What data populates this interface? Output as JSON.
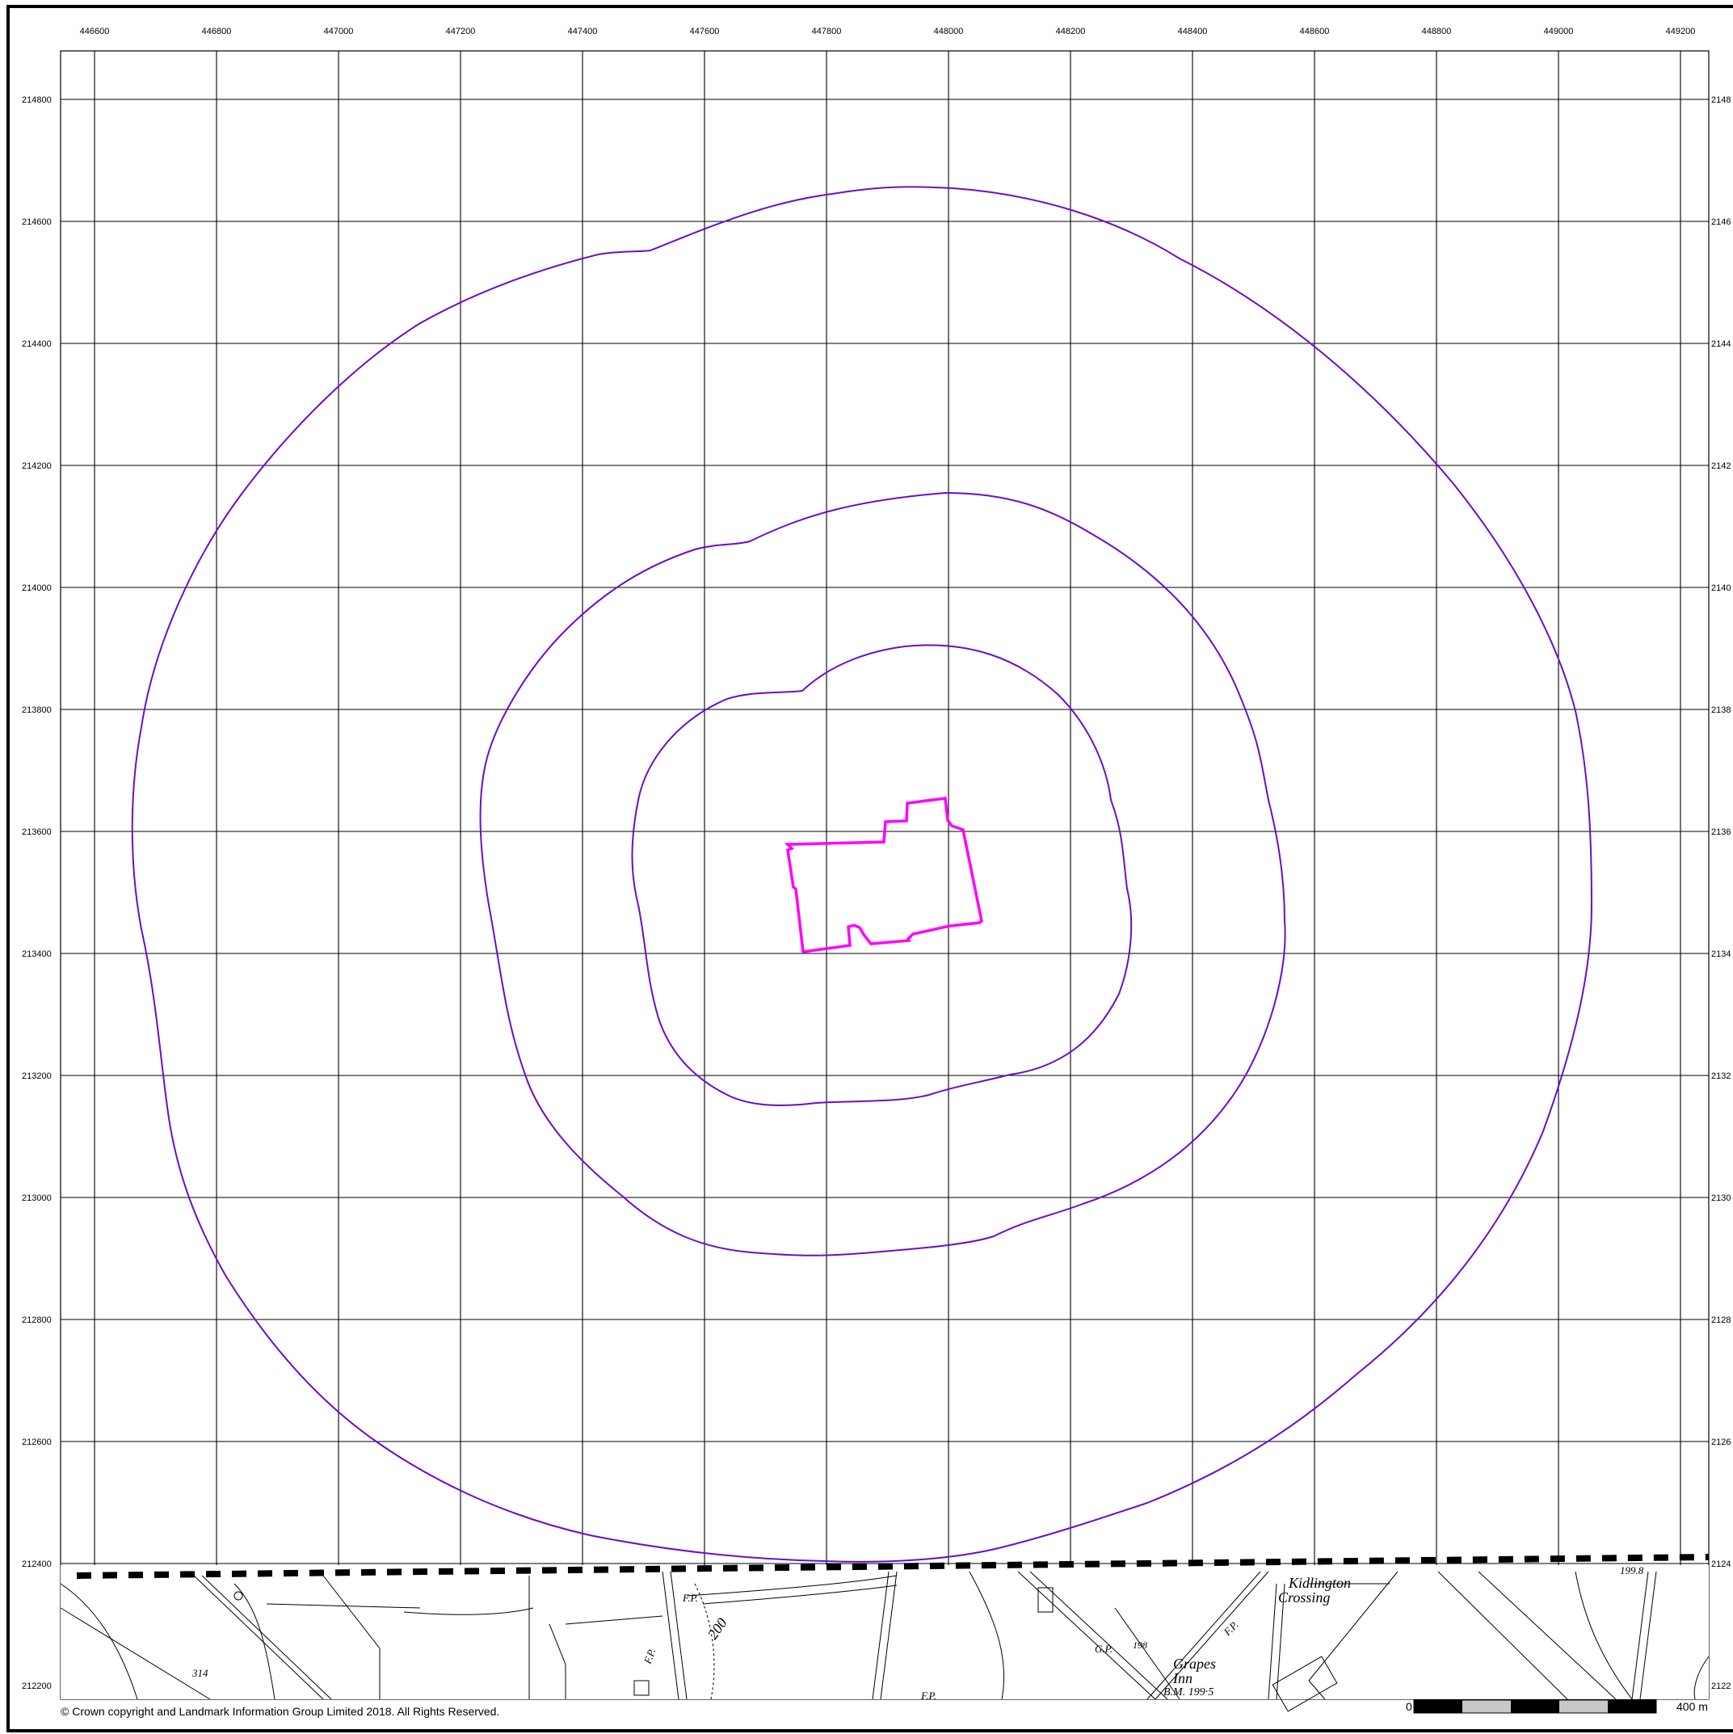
{
  "map": {
    "x_ticks": [
      "446600",
      "446800",
      "447000",
      "447200",
      "447400",
      "447600",
      "447800",
      "448000",
      "448200",
      "448400",
      "448600",
      "448800",
      "449000",
      "449200"
    ],
    "y_ticks_left": [
      "214800",
      "214600",
      "214400",
      "214200",
      "214000",
      "213800",
      "213600",
      "213400",
      "213200",
      "213000",
      "212800",
      "212600",
      "212400",
      "212200"
    ],
    "y_ticks_right": [
      "2148",
      "2146",
      "2144",
      "2142",
      "2140",
      "2138",
      "2136",
      "2134",
      "2132",
      "2130",
      "2128",
      "2126",
      "2124",
      "2122"
    ],
    "site_boundary_color": "#ff00ff",
    "buffer_ring_color": "#6a0dce",
    "buffer_rings": [
      {
        "label": "",
        "x_range": [
          447425,
          448290
        ],
        "y_range": [
          213150,
          213900
        ]
      },
      {
        "label": "",
        "x_range": [
          447170,
          448555
        ],
        "y_range": [
          212900,
          214155
        ]
      },
      {
        "label": "",
        "x_range": [
          446680,
          449060
        ],
        "y_range": [
          212400,
          214655
        ]
      }
    ],
    "basemap_labels": {
      "kidlington": "Kidlington",
      "crossing": "Crossing",
      "grapes": "Grapes",
      "inn": "Inn",
      "bm_value": "B.M. 199·5",
      "fp1": "F.P.",
      "fp2": "F.P.",
      "fp3": "F.P.",
      "fp4": "F.P.",
      "gp": "G.P.",
      "contour_200": "200",
      "spot_314": "314",
      "spot_199_8": "199.8",
      "spot_198": "198"
    },
    "copyright": "© Crown copyright and Landmark Information Group Limited 2018.  All Rights Reserved.",
    "scale_bar": {
      "start_label": "0",
      "end_label": "400 m"
    }
  }
}
